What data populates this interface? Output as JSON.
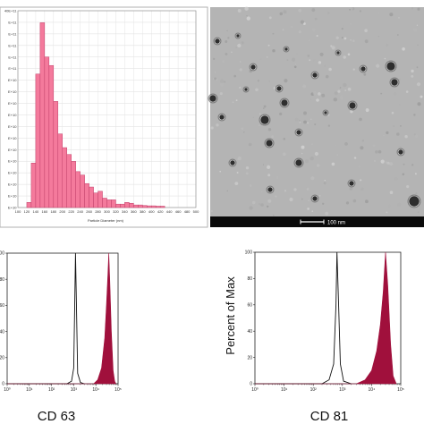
{
  "figure": {
    "panel_a": {
      "tick_labels": [
        "40E+11",
        "E+11",
        "E+11",
        "E+11",
        "E+11",
        "E+11",
        "E+10",
        "E+10",
        "E+10",
        "E+10",
        "E+10",
        "E+10",
        "E+10",
        "E+10",
        "E+10",
        "E+10",
        "E+10",
        "E+10"
      ],
      "xlabel": "Particle Diameter (nm)"
    },
    "panel_b": {
      "scale_label": "100 nm"
    },
    "panel_c": {
      "caption": "CD 63",
      "ytick_labels": [
        "100",
        "80",
        "60",
        "40",
        "20",
        "0"
      ],
      "xtick_labels": [
        "10⁰",
        "10¹",
        "10²",
        "10³",
        "10⁴",
        "10⁵"
      ]
    },
    "panel_d": {
      "caption": "CD 81",
      "ylabel": "Percent of Max",
      "ytick_labels": [
        "100",
        "80",
        "60",
        "40",
        "20",
        "0"
      ],
      "xtick_labels": [
        "10⁰",
        "10¹",
        "10²",
        "10³",
        "10⁴",
        "10⁵"
      ]
    },
    "colors": {
      "bar_fill": "#f47a9c",
      "bar_stroke": "#c0406a",
      "stained_fill": "#a0103c",
      "tem_background": "#b4b4b4"
    }
  },
  "chart_data": [
    {
      "type": "bar",
      "categories": [
        "100",
        "110",
        "120",
        "130",
        "140",
        "150",
        "160",
        "170",
        "180",
        "190",
        "200",
        "210",
        "220",
        "230",
        "240",
        "250",
        "260",
        "270",
        "280",
        "290",
        "300",
        "310",
        "320",
        "330",
        "340",
        "350",
        "360",
        "370",
        "380",
        "390",
        "400",
        "410",
        "420",
        "430",
        "440",
        "450",
        "460",
        "470",
        "480",
        "490"
      ],
      "values": [
        0.0,
        0.0,
        0.3,
        2.6,
        7.8,
        10.8,
        8.8,
        8.3,
        6.2,
        4.3,
        3.5,
        3.1,
        2.7,
        2.1,
        1.9,
        1.4,
        1.2,
        0.85,
        0.95,
        0.55,
        0.45,
        0.45,
        0.2,
        0.2,
        0.3,
        0.25,
        0.15,
        0.15,
        0.12,
        0.1,
        0.1,
        0.08,
        0.08,
        0.0,
        0.0,
        0.0,
        0.0,
        0.0,
        0.0,
        0.0
      ],
      "x_tick_labels": [
        "100",
        "120",
        "140",
        "160",
        "180",
        "200",
        "220",
        "240",
        "260",
        "280",
        "300",
        "320",
        "340",
        "360",
        "380",
        "400",
        "420",
        "440",
        "460",
        "480",
        "500"
      ],
      "xlabel": "Particle Diameter (nm)",
      "xlim": [
        100,
        500
      ],
      "ylim": [
        0,
        11.5
      ],
      "grid": true
    },
    {
      "type": "area",
      "title": "CD 63",
      "xlabel": "",
      "x_scale": "log",
      "xlim": [
        1,
        100000
      ],
      "ylim": [
        0,
        100
      ],
      "series": [
        {
          "values": [
            [
              1,
              0
            ],
            [
              500,
              0
            ],
            [
              800,
              2
            ],
            [
              1000,
              12
            ],
            [
              1100,
              55
            ],
            [
              1200,
              100
            ],
            [
              1300,
              70
            ],
            [
              1500,
              8
            ],
            [
              2000,
              1
            ],
            [
              3000,
              0
            ]
          ]
        },
        {
          "values": [
            [
              1,
              0
            ],
            [
              8000,
              0
            ],
            [
              12000,
              3
            ],
            [
              18000,
              12
            ],
            [
              25000,
              35
            ],
            [
              30000,
              60
            ],
            [
              35000,
              85
            ],
            [
              38000,
              100
            ],
            [
              42000,
              80
            ],
            [
              50000,
              40
            ],
            [
              60000,
              10
            ],
            [
              70000,
              2
            ],
            [
              80000,
              0
            ]
          ]
        }
      ]
    },
    {
      "type": "area",
      "title": "CD 81",
      "ylabel": "Percent of Max",
      "x_scale": "log",
      "xlim": [
        1,
        100000
      ],
      "ylim": [
        0,
        100
      ],
      "series": [
        {
          "values": [
            [
              1,
              0
            ],
            [
              200,
              0
            ],
            [
              350,
              3
            ],
            [
              500,
              15
            ],
            [
              600,
              60
            ],
            [
              650,
              100
            ],
            [
              720,
              70
            ],
            [
              850,
              15
            ],
            [
              1100,
              2
            ],
            [
              2000,
              0
            ]
          ]
        },
        {
          "values": [
            [
              1,
              0
            ],
            [
              3000,
              0
            ],
            [
              6000,
              3
            ],
            [
              10000,
              10
            ],
            [
              15000,
              25
            ],
            [
              20000,
              45
            ],
            [
              25000,
              70
            ],
            [
              30000,
              100
            ],
            [
              36000,
              75
            ],
            [
              45000,
              30
            ],
            [
              55000,
              6
            ],
            [
              70000,
              0
            ]
          ]
        }
      ]
    }
  ]
}
